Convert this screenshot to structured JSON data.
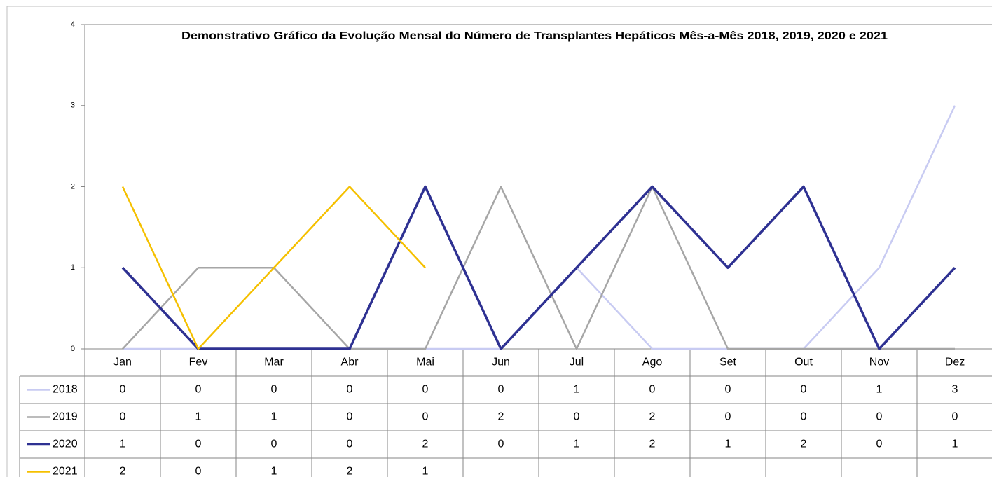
{
  "chart_data": {
    "type": "line",
    "title": "Demonstrativo Gráfico da Evolução Mensal do Número de Transplantes Hepáticos Mês-a-Mês 2018, 2019, 2020 e 2021",
    "categories": [
      "Jan",
      "Fev",
      "Mar",
      "Abr",
      "Mai",
      "Jun",
      "Jul",
      "Ago",
      "Set",
      "Out",
      "Nov",
      "Dez"
    ],
    "series": [
      {
        "name": "2018",
        "color": "#c8cbf2",
        "values": [
          0,
          0,
          0,
          0,
          0,
          0,
          1,
          0,
          0,
          0,
          1,
          3
        ]
      },
      {
        "name": "2019",
        "color": "#a6a6a6",
        "values": [
          0,
          1,
          1,
          0,
          0,
          2,
          0,
          2,
          0,
          0,
          0,
          0
        ]
      },
      {
        "name": "2020",
        "color": "#2e3192",
        "values": [
          1,
          0,
          0,
          0,
          2,
          0,
          1,
          2,
          1,
          2,
          0,
          1
        ]
      },
      {
        "name": "2021",
        "color": "#f5c000",
        "values": [
          2,
          0,
          1,
          2,
          1,
          null,
          null,
          null,
          null,
          null,
          null,
          null
        ]
      }
    ],
    "ylim": [
      0,
      4
    ],
    "yticks": [
      0,
      1,
      2,
      3,
      4
    ],
    "grid": false,
    "data_table": true
  }
}
